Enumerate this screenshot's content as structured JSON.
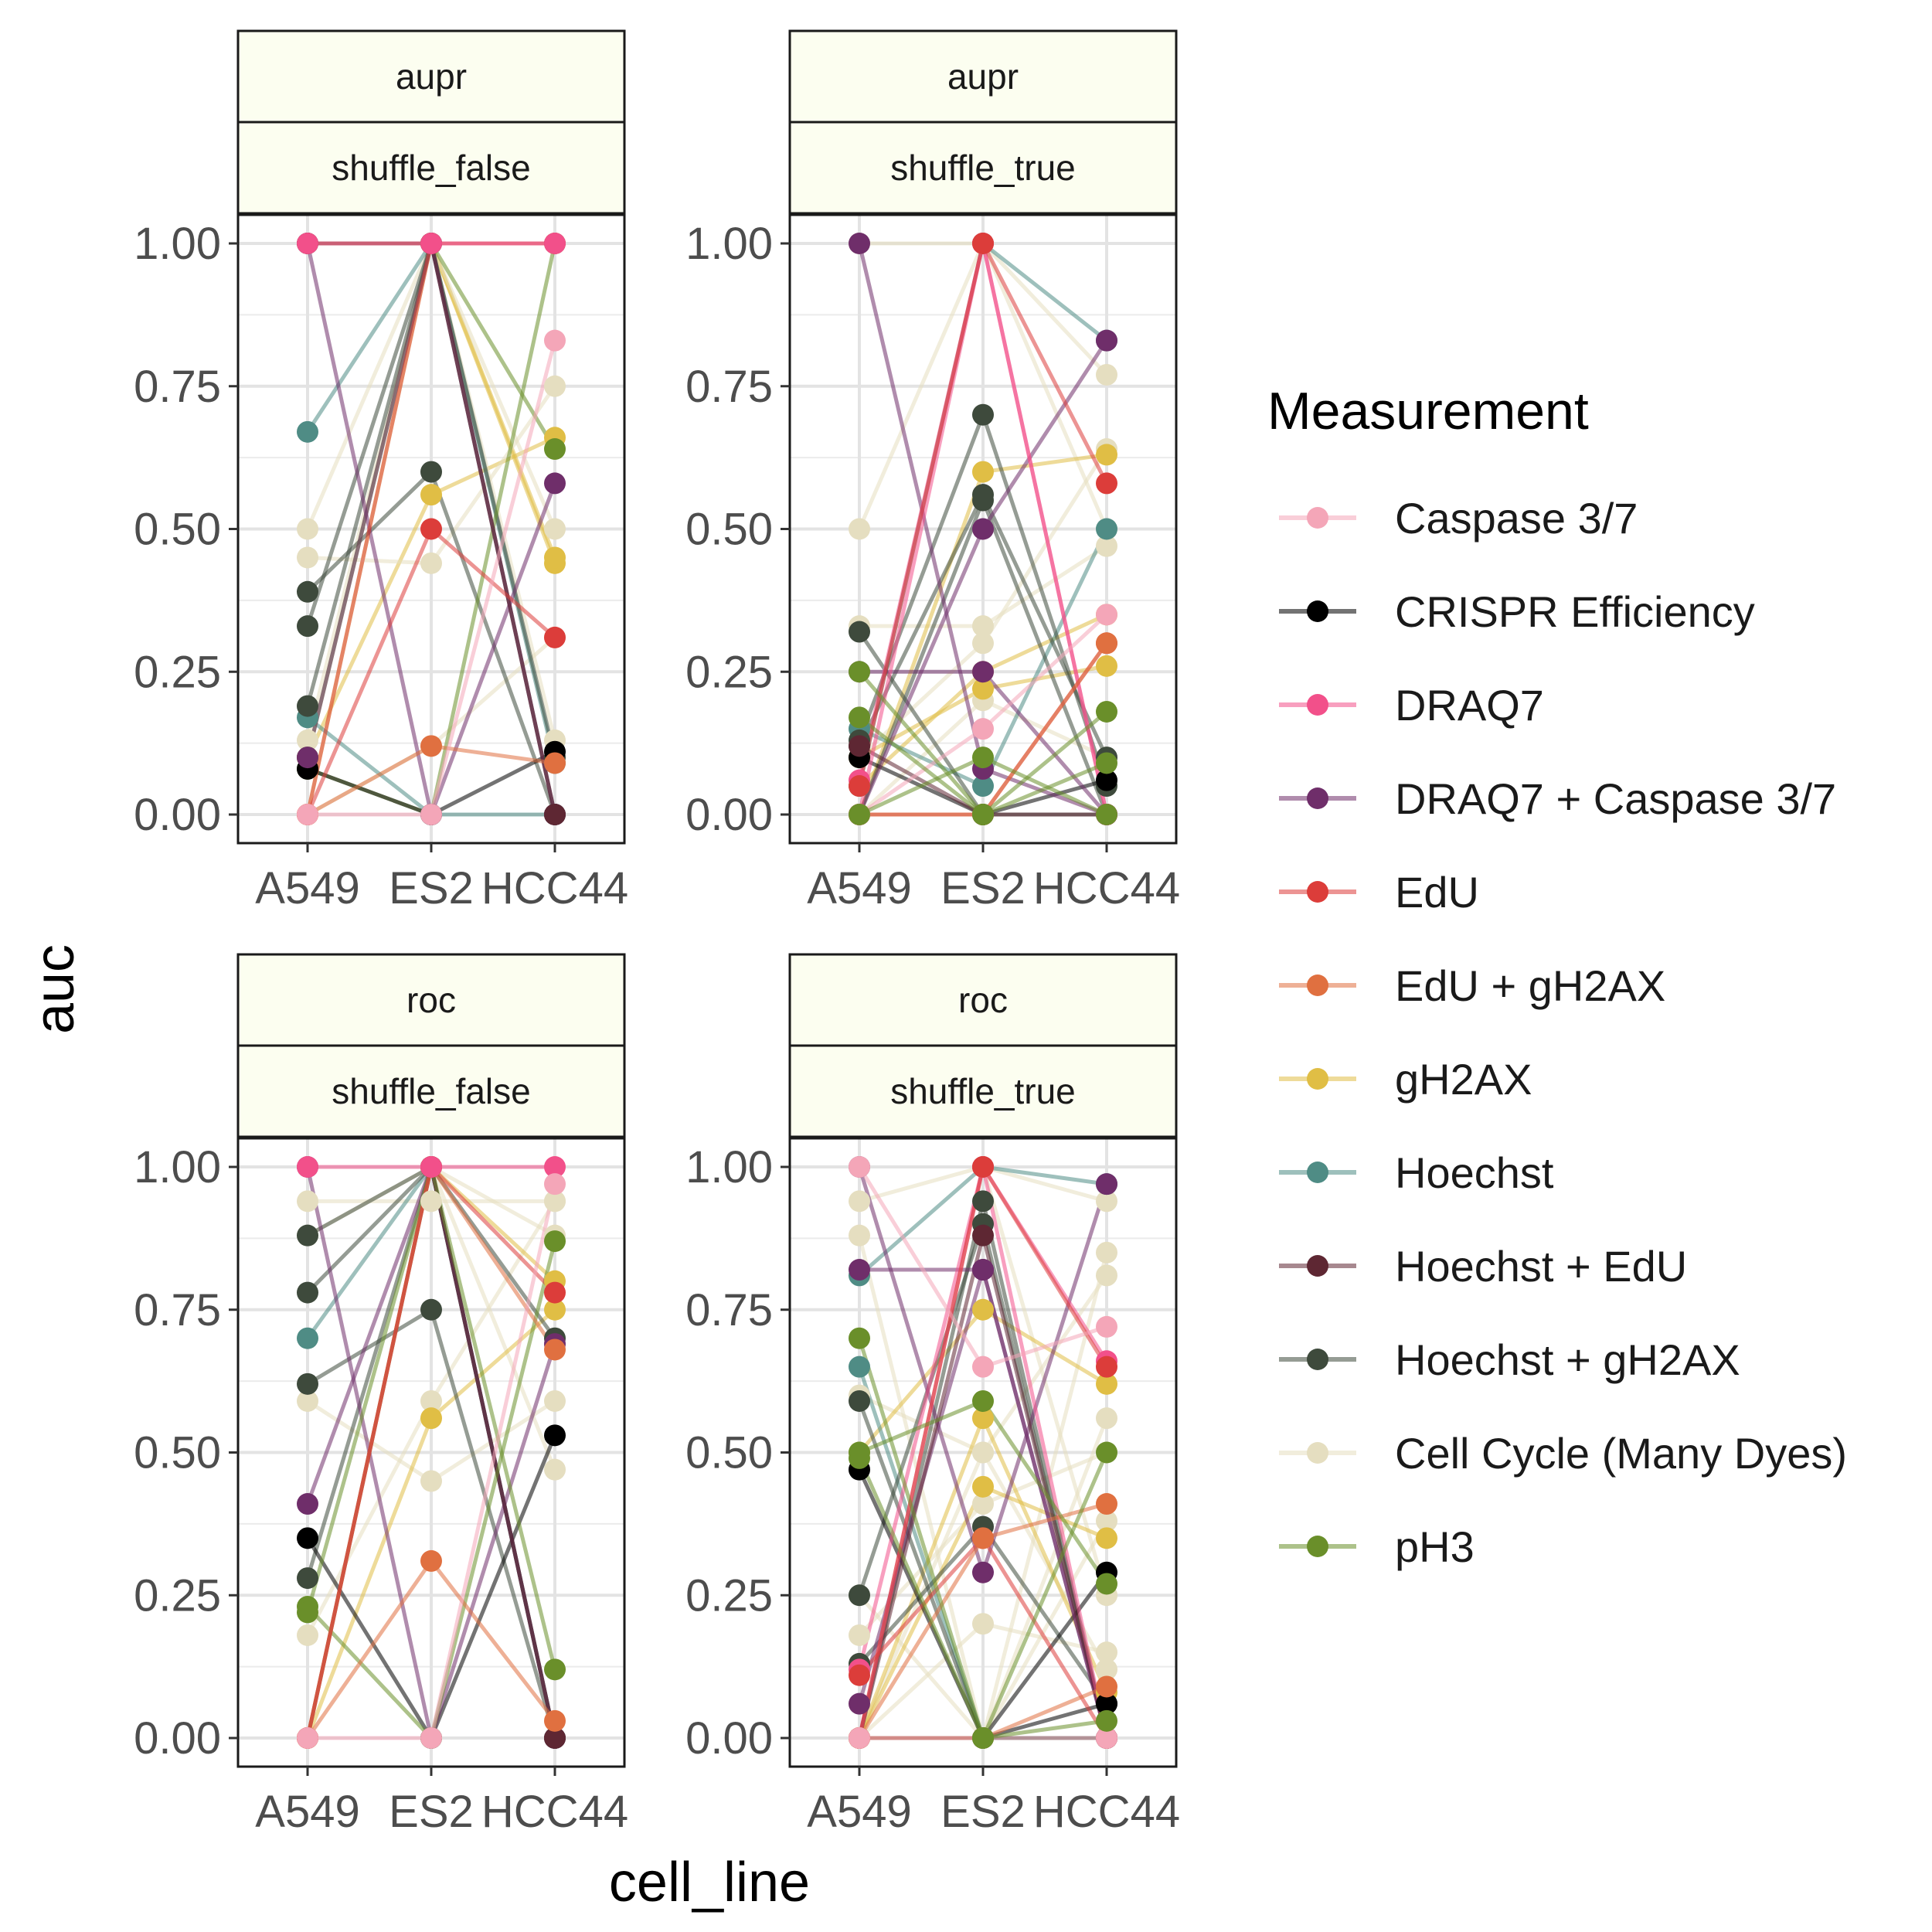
{
  "chart_data": {
    "type": "line",
    "x_label": "cell_line",
    "y_label": "auc",
    "categories": [
      "A549",
      "ES2",
      "HCC44"
    ],
    "y_ticks": [
      "0.00",
      "0.25",
      "0.50",
      "0.75",
      "1.00"
    ],
    "ylim": [
      0,
      1
    ],
    "grid": true,
    "legend": {
      "title": "Measurement",
      "position": "right",
      "items": [
        {
          "name": "Caspase 3/7",
          "color": "#F4A6B8"
        },
        {
          "name": "CRISPR Efficiency",
          "color": "#000000"
        },
        {
          "name": "DRAQ7",
          "color": "#F2508A"
        },
        {
          "name": "DRAQ7 + Caspase 3/7",
          "color": "#6F2E6A"
        },
        {
          "name": "EdU",
          "color": "#DC3D3A"
        },
        {
          "name": "EdU + gH2AX",
          "color": "#E07040"
        },
        {
          "name": "gH2AX",
          "color": "#E0BE45"
        },
        {
          "name": "Hoechst",
          "color": "#4F8C85"
        },
        {
          "name": "Hoechst + EdU",
          "color": "#5E2733"
        },
        {
          "name": "Hoechst + gH2AX",
          "color": "#3E4A3C"
        },
        {
          "name": "Cell Cycle (Many Dyes)",
          "color": "#E5DEC0"
        },
        {
          "name": "pH3",
          "color": "#6A8F2A"
        }
      ]
    },
    "panels": [
      {
        "strip_top": "aupr",
        "strip_bottom": "shuffle_false",
        "lines": [
          {
            "m": 6,
            "v": [
              1.0,
              1.0,
              0.44
            ]
          },
          {
            "m": 6,
            "v": [
              0.1,
              0.56,
              0.66
            ]
          },
          {
            "m": 6,
            "v": [
              0.0,
              1.0,
              0.45
            ]
          },
          {
            "m": 10,
            "v": [
              0.5,
              1.0,
              0.5
            ]
          },
          {
            "m": 10,
            "v": [
              0.45,
              0.44,
              0.75
            ]
          },
          {
            "m": 10,
            "v": [
              0.0,
              0.12,
              0.31
            ]
          },
          {
            "m": 10,
            "v": [
              0.13,
              1.0,
              0.13
            ]
          },
          {
            "m": 7,
            "v": [
              0.67,
              1.0,
              0.09
            ]
          },
          {
            "m": 7,
            "v": [
              0.17,
              0.0,
              0.0
            ]
          },
          {
            "m": 9,
            "v": [
              0.39,
              0.6,
              0.0
            ]
          },
          {
            "m": 9,
            "v": [
              0.33,
              1.0,
              0.1
            ]
          },
          {
            "m": 9,
            "v": [
              0.19,
              1.0,
              0.0
            ]
          },
          {
            "m": 11,
            "v": [
              0.08,
              0.0,
              1.0
            ]
          },
          {
            "m": 11,
            "v": [
              0.1,
              1.0,
              0.64
            ]
          },
          {
            "m": 1,
            "v": [
              0.08,
              0.0,
              0.11
            ]
          },
          {
            "m": 3,
            "v": [
              1.0,
              0.0,
              0.58
            ]
          },
          {
            "m": 3,
            "v": [
              0.1,
              1.0,
              0.0
            ]
          },
          {
            "m": 8,
            "v": [
              1.0,
              1.0,
              0.0
            ]
          },
          {
            "m": 4,
            "v": [
              0.0,
              1.0,
              1.0
            ]
          },
          {
            "m": 4,
            "v": [
              0.0,
              0.5,
              0.31
            ]
          },
          {
            "m": 5,
            "v": [
              0.0,
              0.12,
              0.09
            ]
          },
          {
            "m": 2,
            "v": [
              1.0,
              1.0,
              1.0
            ]
          },
          {
            "m": 0,
            "v": [
              0.0,
              0.0,
              0.83
            ]
          }
        ]
      },
      {
        "strip_top": "aupr",
        "strip_bottom": "shuffle_true",
        "lines": [
          {
            "m": 10,
            "v": [
              0.5,
              1.0,
              0.77
            ]
          },
          {
            "m": 10,
            "v": [
              0.33,
              0.33,
              0.47
            ]
          },
          {
            "m": 10,
            "v": [
              0.1,
              0.3,
              0.64
            ]
          },
          {
            "m": 10,
            "v": [
              1.0,
              1.0,
              0.5
            ]
          },
          {
            "m": 10,
            "v": [
              0.0,
              0.2,
              0.1
            ]
          },
          {
            "m": 6,
            "v": [
              0.0,
              0.6,
              0.63
            ]
          },
          {
            "m": 6,
            "v": [
              0.1,
              0.22,
              0.26
            ]
          },
          {
            "m": 6,
            "v": [
              0.05,
              0.25,
              0.35
            ]
          },
          {
            "m": 7,
            "v": [
              0.05,
              1.0,
              0.83
            ]
          },
          {
            "m": 7,
            "v": [
              0.15,
              0.05,
              0.5
            ]
          },
          {
            "m": 9,
            "v": [
              0.32,
              0.0,
              0.0
            ]
          },
          {
            "m": 9,
            "v": [
              0.13,
              0.7,
              0.05
            ]
          },
          {
            "m": 9,
            "v": [
              0.12,
              0.56,
              0.1
            ]
          },
          {
            "m": 9,
            "v": [
              0.0,
              0.55,
              0.0
            ]
          },
          {
            "m": 1,
            "v": [
              0.1,
              0.0,
              0.06
            ]
          },
          {
            "m": 3,
            "v": [
              1.0,
              0.08,
              0.0
            ]
          },
          {
            "m": 3,
            "v": [
              0.25,
              0.25,
              0.0
            ]
          },
          {
            "m": 3,
            "v": [
              0.0,
              0.5,
              0.83
            ]
          },
          {
            "m": 8,
            "v": [
              0.12,
              0.0,
              0.0
            ]
          },
          {
            "m": 2,
            "v": [
              0.06,
              1.0,
              0.0
            ]
          },
          {
            "m": 2,
            "v": [
              0.0,
              1.0,
              0.0
            ]
          },
          {
            "m": 4,
            "v": [
              0.05,
              1.0,
              0.58
            ]
          },
          {
            "m": 4,
            "v": [
              0.0,
              0.0,
              0.3
            ]
          },
          {
            "m": 5,
            "v": [
              0.0,
              0.0,
              0.3
            ]
          },
          {
            "m": 0,
            "v": [
              0.0,
              0.15,
              0.35
            ]
          },
          {
            "m": 11,
            "v": [
              0.17,
              0.0,
              0.18
            ]
          },
          {
            "m": 11,
            "v": [
              0.25,
              0.0,
              0.09
            ]
          },
          {
            "m": 11,
            "v": [
              0.0,
              0.1,
              0.0
            ]
          }
        ]
      },
      {
        "strip_top": "roc",
        "strip_bottom": "shuffle_false",
        "lines": [
          {
            "m": 10,
            "v": [
              0.94,
              0.94,
              0.94
            ]
          },
          {
            "m": 10,
            "v": [
              0.88,
              1.0,
              0.47
            ]
          },
          {
            "m": 10,
            "v": [
              0.59,
              0.45,
              0.59
            ]
          },
          {
            "m": 10,
            "v": [
              0.18,
              0.59,
              0.94
            ]
          },
          {
            "m": 10,
            "v": [
              0.0,
              1.0,
              0.88
            ]
          },
          {
            "m": 6,
            "v": [
              0.0,
              0.56,
              0.75
            ]
          },
          {
            "m": 6,
            "v": [
              0.0,
              1.0,
              0.8
            ]
          },
          {
            "m": 7,
            "v": [
              0.7,
              1.0,
              0.0
            ]
          },
          {
            "m": 9,
            "v": [
              0.88,
              1.0,
              0.0
            ]
          },
          {
            "m": 9,
            "v": [
              0.78,
              1.0,
              0.7
            ]
          },
          {
            "m": 9,
            "v": [
              0.62,
              0.75,
              0.0
            ]
          },
          {
            "m": 9,
            "v": [
              0.28,
              1.0,
              0.0
            ]
          },
          {
            "m": 1,
            "v": [
              0.35,
              0.0,
              0.53
            ]
          },
          {
            "m": 3,
            "v": [
              1.0,
              0.0,
              0.69
            ]
          },
          {
            "m": 3,
            "v": [
              0.41,
              1.0,
              0.0
            ]
          },
          {
            "m": 8,
            "v": [
              0.0,
              1.0,
              0.0
            ]
          },
          {
            "m": 11,
            "v": [
              0.23,
              0.0,
              0.87
            ]
          },
          {
            "m": 11,
            "v": [
              0.22,
              1.0,
              0.12
            ]
          },
          {
            "m": 5,
            "v": [
              0.0,
              0.31,
              0.03
            ]
          },
          {
            "m": 5,
            "v": [
              0.0,
              1.0,
              0.68
            ]
          },
          {
            "m": 4,
            "v": [
              0.0,
              1.0,
              0.78
            ]
          },
          {
            "m": 2,
            "v": [
              1.0,
              1.0,
              1.0
            ]
          },
          {
            "m": 0,
            "v": [
              0.0,
              0.0,
              0.97
            ]
          }
        ]
      },
      {
        "strip_top": "roc",
        "strip_bottom": "shuffle_true",
        "lines": [
          {
            "m": 10,
            "v": [
              0.94,
              1.0,
              0.94
            ]
          },
          {
            "m": 10,
            "v": [
              0.88,
              0.0,
              0.85
            ]
          },
          {
            "m": 10,
            "v": [
              0.6,
              0.5,
              0.81
            ]
          },
          {
            "m": 10,
            "v": [
              0.25,
              0.0,
              0.56
            ]
          },
          {
            "m": 10,
            "v": [
              0.18,
              0.41,
              0.5
            ]
          },
          {
            "m": 10,
            "v": [
              0.0,
              0.0,
              0.38
            ]
          },
          {
            "m": 10,
            "v": [
              0.0,
              1.0,
              0.25
            ]
          },
          {
            "m": 10,
            "v": [
              0.0,
              0.2,
              0.15
            ]
          },
          {
            "m": 10,
            "v": [
              0.0,
              0.5,
              0.12
            ]
          },
          {
            "m": 6,
            "v": [
              0.5,
              0.75,
              0.62
            ]
          },
          {
            "m": 6,
            "v": [
              0.0,
              0.44,
              0.35
            ]
          },
          {
            "m": 6,
            "v": [
              0.0,
              0.56,
              0.08
            ]
          },
          {
            "m": 7,
            "v": [
              0.81,
              1.0,
              0.97
            ]
          },
          {
            "m": 7,
            "v": [
              0.65,
              0.0,
              0.0
            ]
          },
          {
            "m": 9,
            "v": [
              0.59,
              0.0,
              0.0
            ]
          },
          {
            "m": 9,
            "v": [
              0.25,
              0.9,
              0.0
            ]
          },
          {
            "m": 9,
            "v": [
              0.13,
              0.37,
              0.06
            ]
          },
          {
            "m": 9,
            "v": [
              0.0,
              0.94,
              0.0
            ]
          },
          {
            "m": 1,
            "v": [
              0.47,
              0.0,
              0.06
            ]
          },
          {
            "m": 1,
            "v": [
              0.0,
              0.0,
              0.29
            ]
          },
          {
            "m": 3,
            "v": [
              1.0,
              0.29,
              0.97
            ]
          },
          {
            "m": 3,
            "v": [
              0.82,
              0.82,
              0.0
            ]
          },
          {
            "m": 3,
            "v": [
              0.06,
              0.82,
              0.0
            ]
          },
          {
            "m": 8,
            "v": [
              0.0,
              0.88,
              0.0
            ]
          },
          {
            "m": 2,
            "v": [
              0.12,
              1.0,
              0.0
            ]
          },
          {
            "m": 2,
            "v": [
              0.0,
              1.0,
              0.66
            ]
          },
          {
            "m": 4,
            "v": [
              0.0,
              1.0,
              0.65
            ]
          },
          {
            "m": 4,
            "v": [
              0.11,
              0.35,
              0.0
            ]
          },
          {
            "m": 5,
            "v": [
              0.0,
              0.35,
              0.41
            ]
          },
          {
            "m": 5,
            "v": [
              0.0,
              0.0,
              0.09
            ]
          },
          {
            "m": 0,
            "v": [
              1.0,
              0.65,
              0.72
            ]
          },
          {
            "m": 0,
            "v": [
              0.0,
              0.0,
              0.0
            ]
          },
          {
            "m": 11,
            "v": [
              0.7,
              0.0,
              0.5
            ]
          },
          {
            "m": 11,
            "v": [
              0.5,
              0.59,
              0.27
            ]
          },
          {
            "m": 11,
            "v": [
              0.49,
              0.0,
              0.03
            ]
          }
        ]
      }
    ]
  }
}
